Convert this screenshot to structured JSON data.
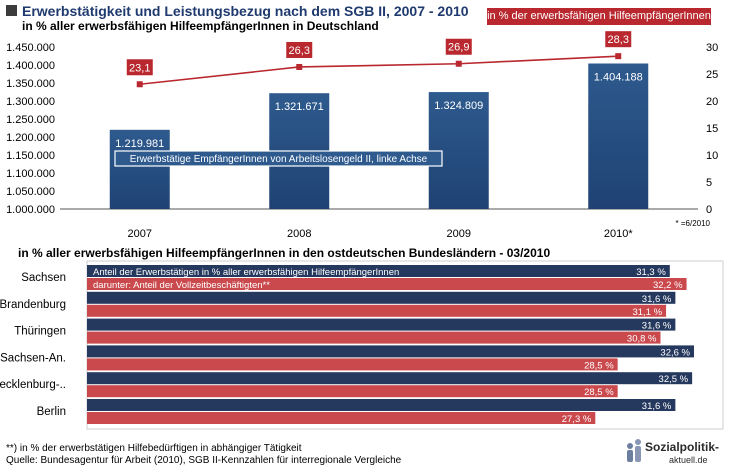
{
  "header": {
    "title": "Erwerbstätigkeit und Leistungsbezug nach dem SGB II, 2007 - 2010",
    "subtitle": "in % aller erwerbsfähigen HilfeempfängerInnen in Deutschland",
    "line_legend": "in % der erwerbsfähigen HilfeempfängerInnen",
    "bar_legend": "Erwerbstätige EmpfängerInnen von Arbeitslosengeld II, linke Achse",
    "note": "* =6/2010"
  },
  "chart_data": [
    {
      "type": "bar",
      "categories": [
        "2007",
        "2008",
        "2009",
        "2010*"
      ],
      "series": [
        {
          "name": "Erwerbstätige EmpfängerInnen von Arbeitslosengeld II, linke Achse",
          "values": [
            1219981,
            1321671,
            1324809,
            1404188
          ],
          "labels": [
            "1.219.981",
            "1.321.671",
            "1.324.809",
            "1.404.188"
          ],
          "color": "#2e5a8e"
        },
        {
          "name": "in % der erwerbsfähigen HilfeempfängerInnen",
          "type": "line",
          "values": [
            23.1,
            26.3,
            26.9,
            28.3
          ],
          "labels": [
            "23,1",
            "26,3",
            "26,9",
            "28,3"
          ],
          "color": "#b8282e"
        }
      ],
      "ylim": [
        1000000,
        1450000
      ],
      "yticks": [
        "1.000.000",
        "1.050.000",
        "1.100.000",
        "1.150.000",
        "1.200.000",
        "1.250.000",
        "1.300.000",
        "1.350.000",
        "1.400.000",
        "1.450.000"
      ],
      "y2lim": [
        0,
        30
      ],
      "y2ticks": [
        "0",
        "5",
        "10",
        "15",
        "20",
        "25",
        "30"
      ]
    },
    {
      "type": "bar",
      "orientation": "horizontal",
      "title": "in % aller erwerbsfähigen HilfeempfängerInnen in den ostdeutschen Bundesländern - 03/2010",
      "categories": [
        "Sachsen",
        "Brandenburg",
        "Thüringen",
        "Sachsen-An.",
        "Mecklenburg-..",
        "Berlin"
      ],
      "series": [
        {
          "name": "Anteil der Erwerbstätigen in % aller erwerbsfähigen HilfeempfängerInnen",
          "values": [
            31.3,
            31.6,
            31.6,
            32.6,
            32.5,
            31.6
          ],
          "labels": [
            "31,3 %",
            "31,6 %",
            "31,6 %",
            "32,6 %",
            "32,5 %",
            "31,6 %"
          ],
          "color": "#25395e"
        },
        {
          "name": "darunter: Anteil der Vollzeitbeschäftigten**",
          "values": [
            32.2,
            31.1,
            30.8,
            28.5,
            28.5,
            27.3
          ],
          "labels": [
            "32,2 %",
            "31,1 %",
            "30,8 %",
            "28,5 %",
            "28,5 %",
            "27,3 %"
          ],
          "color": "#c9494d"
        }
      ]
    }
  ],
  "footer": {
    "footnote1": "**) in % der erwerbstätigen Hilfebedürftigen in abhängiger Tätigkeit",
    "footnote2": "Quelle: Bundesagentur für Arbeit (2010), SGB II-Kennzahlen für interregionale Vergleiche",
    "logo_line1": "Sozialpolitik-",
    "logo_line2": "aktuell.de"
  },
  "colors": {
    "title": "#1f3a6e",
    "bar_top": "#2e5a8e",
    "line": "#b8282e",
    "hbar_dark": "#25395e",
    "hbar_red": "#c9494d"
  }
}
